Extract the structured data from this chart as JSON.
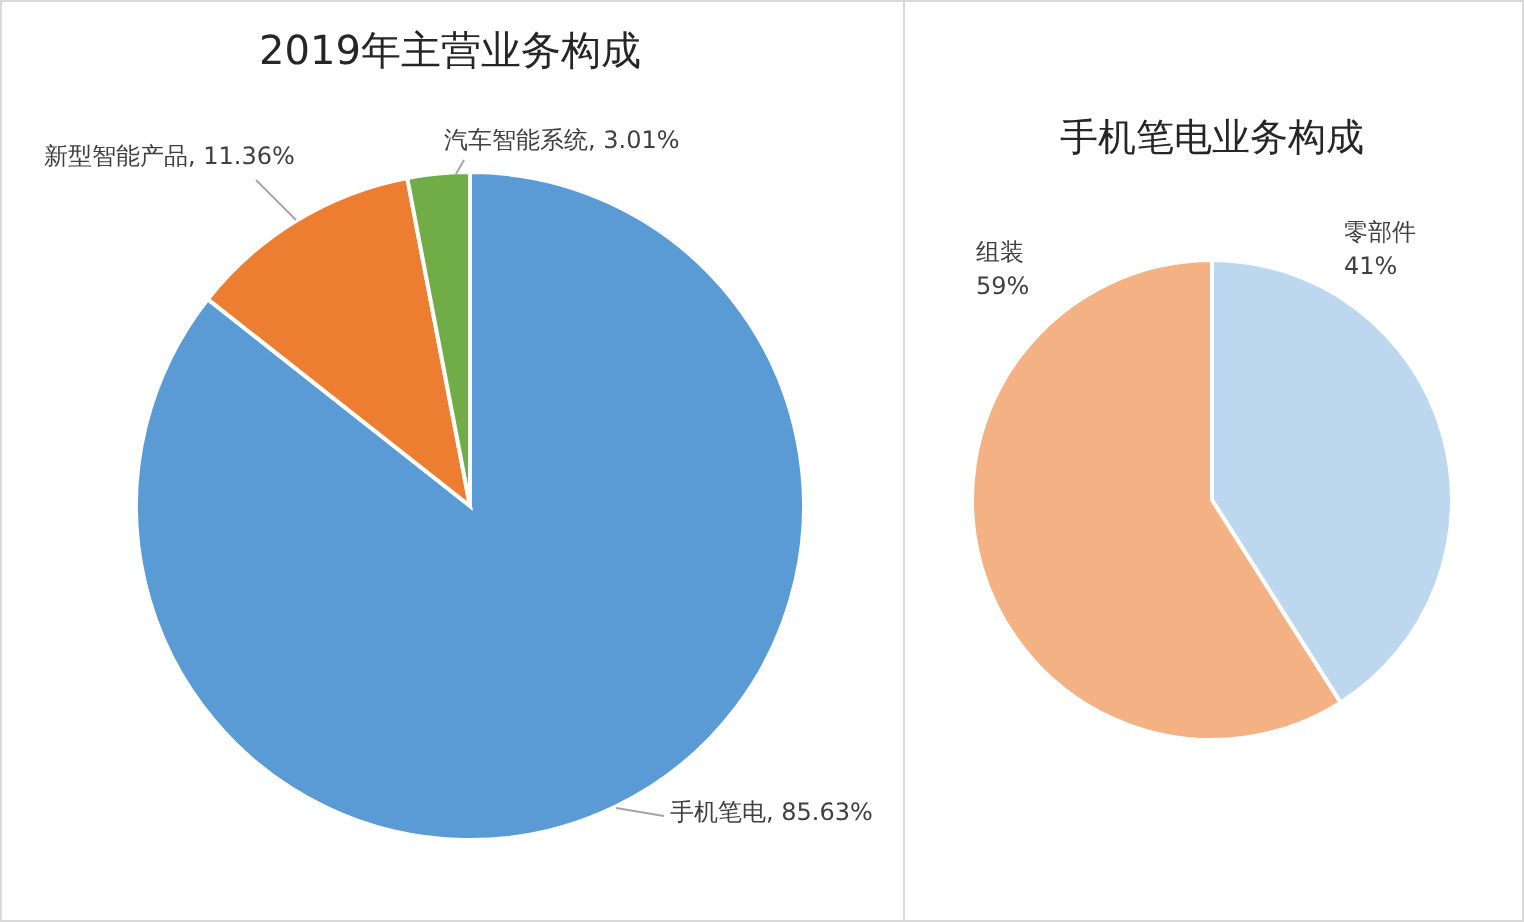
{
  "chart_data": [
    {
      "type": "pie",
      "title": "2019年主营业务构成",
      "categories": [
        "手机笔电",
        "新型智能产品",
        "汽车智能系统"
      ],
      "values": [
        85.63,
        11.36,
        3.01
      ],
      "colors": [
        "#5b9bd5",
        "#ed7d31",
        "#70ad47"
      ],
      "value_labels": [
        ", 85.63%",
        ", 11.36%",
        ", 3.01%"
      ]
    },
    {
      "type": "pie",
      "title": "手机笔电业务构成",
      "categories": [
        "零部件",
        "组装"
      ],
      "values": [
        41,
        59
      ],
      "colors": [
        "#bdd7ee",
        "#f4b183"
      ],
      "value_labels": [
        "41%",
        "59%"
      ]
    }
  ]
}
